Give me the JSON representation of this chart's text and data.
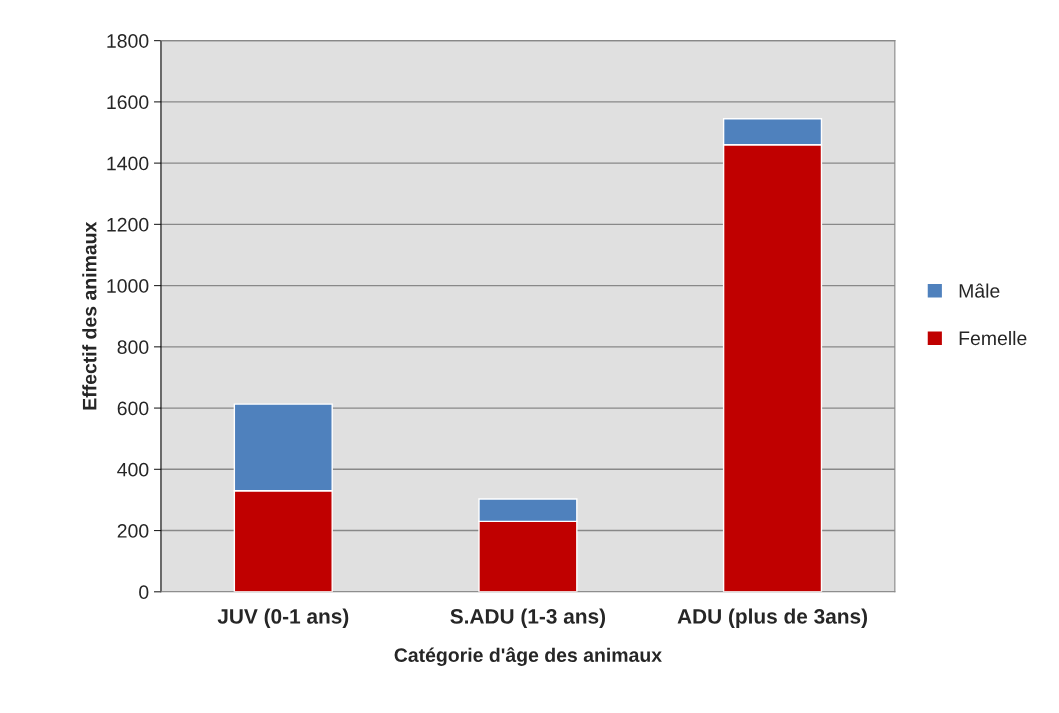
{
  "chart_data": {
    "type": "bar",
    "stacked": true,
    "xlabel": "Catégorie d'âge des animaux",
    "ylabel": "Effectif des animaux",
    "categories": [
      "JUV (0-1 ans)",
      "S.ADU (1-3 ans)",
      "ADU (plus de 3ans)"
    ],
    "series": [
      {
        "name": "Femelle",
        "color": "#c00000",
        "values": [
          330,
          230,
          1460
        ]
      },
      {
        "name": "Mâle",
        "color": "#4f81bd",
        "values": [
          283,
          73,
          85
        ]
      }
    ],
    "ylim": [
      0,
      1800
    ],
    "yticks": [
      0,
      200,
      400,
      600,
      800,
      1000,
      1200,
      1400,
      1600,
      1800
    ],
    "grid": "y",
    "legend": "right"
  }
}
